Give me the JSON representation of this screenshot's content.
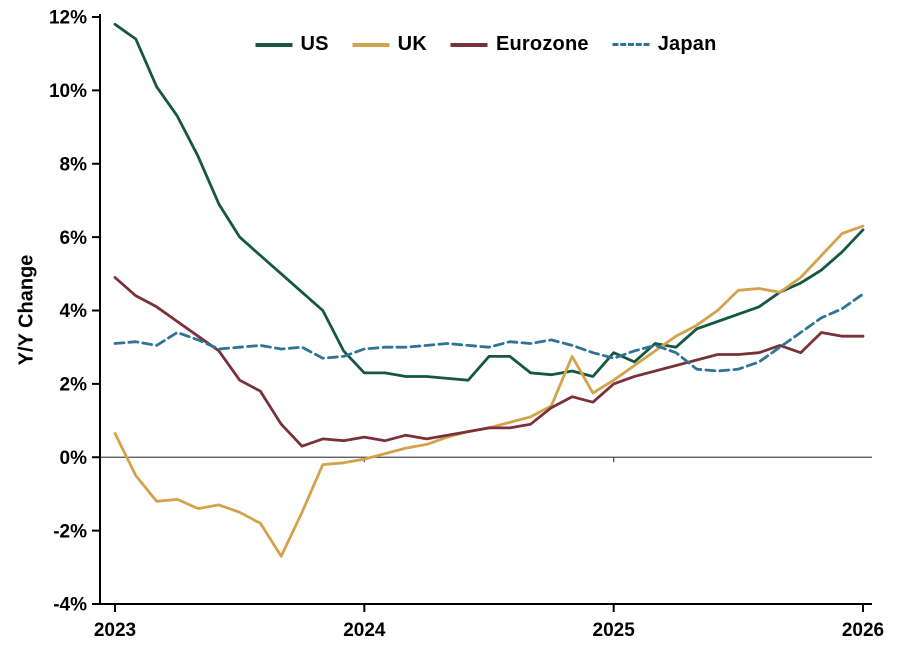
{
  "chart_data": {
    "type": "line",
    "title": "",
    "ylabel": "Y/Y Change",
    "ylim": [
      -4,
      12
    ],
    "y_ticks": [
      12,
      10,
      8,
      6,
      4,
      2,
      0,
      -2,
      -4
    ],
    "y_tick_labels": [
      "12%",
      "10%",
      "8%",
      "6%",
      "4%",
      "2%",
      "0%",
      "-2%",
      "-4%"
    ],
    "x_tick_labels": [
      "2023",
      "2024",
      "2025",
      "2026"
    ],
    "frequency": "monthly",
    "grid": false,
    "legend_position": "top-center",
    "colors": {
      "axis": "#000000",
      "zero_line": "#4d4d4d",
      "background": "#ffffff"
    },
    "series": [
      {
        "name": "US",
        "color": "#155743",
        "style": "solid",
        "values": [
          11.8,
          11.4,
          10.1,
          9.3,
          8.2,
          6.9,
          6.0,
          5.5,
          5.0,
          4.5,
          4.0,
          2.9,
          2.3,
          2.3,
          2.2,
          2.2,
          2.15,
          2.1,
          2.75,
          2.75,
          2.3,
          2.25,
          2.35,
          2.2,
          2.85,
          2.6,
          3.1,
          3.0,
          3.5,
          3.7,
          3.9,
          4.1,
          4.5,
          4.75,
          5.1,
          5.6,
          6.2
        ]
      },
      {
        "name": "UK",
        "color": "#d4a24c",
        "style": "solid",
        "values": [
          0.65,
          -0.5,
          -1.2,
          -1.15,
          -1.4,
          -1.3,
          -1.5,
          -1.8,
          -2.7,
          -1.5,
          -0.2,
          -0.15,
          -0.05,
          0.1,
          0.25,
          0.35,
          0.55,
          0.7,
          0.8,
          0.95,
          1.1,
          1.4,
          2.75,
          1.75,
          2.1,
          2.5,
          2.9,
          3.3,
          3.6,
          4.0,
          4.55,
          4.6,
          4.5,
          4.9,
          5.5,
          6.1,
          6.3
        ]
      },
      {
        "name": "Eurozone",
        "color": "#7a323a",
        "style": "solid",
        "values": [
          4.9,
          4.4,
          4.1,
          3.7,
          3.3,
          2.9,
          2.1,
          1.8,
          0.9,
          0.3,
          0.5,
          0.45,
          0.55,
          0.45,
          0.6,
          0.5,
          0.6,
          0.7,
          0.8,
          0.8,
          0.9,
          1.35,
          1.65,
          1.5,
          2.0,
          2.2,
          2.35,
          2.5,
          2.65,
          2.8,
          2.8,
          2.85,
          3.05,
          2.85,
          3.4,
          3.3,
          3.3
        ]
      },
      {
        "name": "Japan",
        "color": "#2f7396",
        "style": "dashed",
        "values": [
          3.1,
          3.15,
          3.05,
          3.4,
          3.2,
          2.95,
          3.0,
          3.05,
          2.95,
          3.0,
          2.7,
          2.75,
          2.95,
          3.0,
          3.0,
          3.05,
          3.1,
          3.05,
          3.0,
          3.15,
          3.1,
          3.2,
          3.05,
          2.85,
          2.7,
          2.9,
          3.05,
          2.85,
          2.4,
          2.35,
          2.4,
          2.6,
          3.0,
          3.4,
          3.8,
          4.05,
          4.45
        ]
      }
    ]
  }
}
